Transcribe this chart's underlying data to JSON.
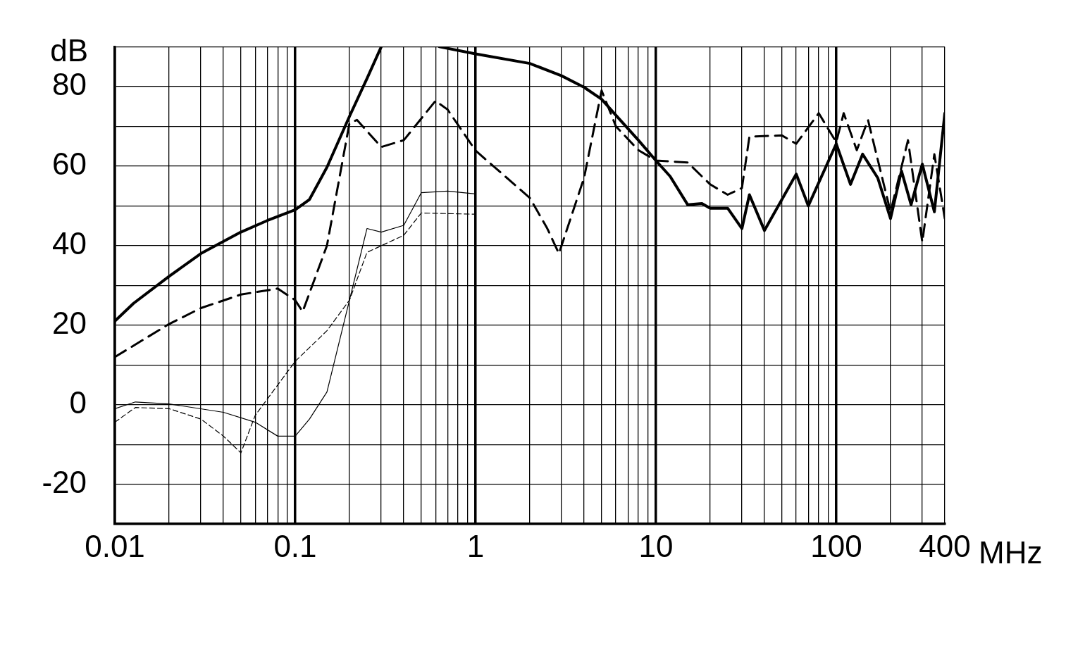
{
  "chart_data": {
    "type": "line",
    "xlabel": "MHz",
    "ylabel": "dB",
    "log": "x",
    "grid": true,
    "legend": false,
    "marker": "none",
    "xlim": [
      0.01,
      400
    ],
    "ylim": [
      -30,
      90
    ],
    "xticks": [
      0.01,
      {
        "value": 0.02,
        "label": null
      },
      {
        "value": 0.03,
        "label": null
      },
      {
        "value": 0.04,
        "label": null
      },
      {
        "value": 0.05,
        "label": null
      },
      {
        "value": 0.06,
        "label": null
      },
      {
        "value": 0.07,
        "label": null
      },
      {
        "value": 0.08,
        "label": null
      },
      {
        "value": 0.09,
        "label": null
      },
      0.1,
      {
        "value": 0.2,
        "label": null
      },
      {
        "value": 0.3,
        "label": null
      },
      {
        "value": 0.4,
        "label": null
      },
      {
        "value": 0.5,
        "label": null
      },
      {
        "value": 0.6,
        "label": null
      },
      {
        "value": 0.7,
        "label": null
      },
      {
        "value": 0.8,
        "label": null
      },
      {
        "value": 0.9,
        "label": null
      },
      1,
      {
        "value": 2,
        "label": null
      },
      {
        "value": 3,
        "label": null
      },
      {
        "value": 4,
        "label": null
      },
      {
        "value": 5,
        "label": null
      },
      {
        "value": 6,
        "label": null
      },
      {
        "value": 7,
        "label": null
      },
      {
        "value": 8,
        "label": null
      },
      {
        "value": 9,
        "label": null
      },
      10,
      {
        "value": 20,
        "label": null
      },
      {
        "value": 30,
        "label": null
      },
      {
        "value": 40,
        "label": null
      },
      {
        "value": 50,
        "label": null
      },
      {
        "value": 60,
        "label": null
      },
      {
        "value": 70,
        "label": null
      },
      {
        "value": 80,
        "label": null
      },
      {
        "value": 90,
        "label": null
      },
      100,
      {
        "value": 200,
        "label": null
      },
      {
        "value": 300,
        "label": null
      },
      400
    ],
    "yticks": [
      {
        "value": -30,
        "label": null
      },
      -20,
      {
        "value": -10,
        "label": null
      },
      0,
      {
        "value": 10,
        "label": null
      },
      20,
      {
        "value": 30,
        "label": null
      },
      40,
      {
        "value": 50,
        "label": null
      },
      60,
      {
        "value": 70,
        "label": null
      },
      80,
      {
        "value": 90,
        "label": null
      }
    ],
    "series": [
      {
        "color": "#000000",
        "line_style": "solid",
        "x": [
          0.01,
          0.0127,
          0.02,
          0.03,
          0.05,
          0.07,
          0.1,
          0.12,
          0.15,
          0.2,
          0.25,
          0.3,
          0.45,
          0.63,
          1,
          2,
          3,
          4,
          5,
          6,
          8,
          10,
          12,
          15,
          18,
          20,
          25,
          30,
          33,
          40,
          60,
          70,
          100,
          120,
          140,
          170,
          200,
          230,
          260,
          300,
          350,
          400
        ],
        "values": [
          21,
          25.5,
          32.3,
          38,
          43.4,
          46.3,
          49,
          51.6,
          59.7,
          72.5,
          82,
          90,
          null,
          90,
          88.2,
          85.8,
          82.7,
          79.8,
          76.8,
          72.8,
          66.5,
          61.4,
          57.4,
          50.3,
          50.6,
          49.4,
          49.4,
          44.3,
          52.8,
          43.8,
          58,
          50,
          65.6,
          55.4,
          63,
          57,
          46.8,
          58.8,
          50.3,
          60.5,
          48.5,
          73.3
        ]
      },
      {
        "color": "#000000",
        "line_style": "dashed",
        "x": [
          0.01,
          0.02,
          0.03,
          0.05,
          0.08,
          0.1,
          0.11,
          0.15,
          0.2,
          0.22,
          0.3,
          0.4,
          0.6,
          0.7,
          1,
          2,
          2.5,
          2.9,
          4,
          5,
          6,
          8,
          10,
          15,
          20,
          25,
          30,
          33,
          50,
          60,
          80,
          100,
          110,
          130,
          150,
          200,
          250,
          300,
          350,
          400
        ],
        "values": [
          12,
          20.3,
          24.3,
          27.7,
          29.2,
          26.3,
          23.4,
          40,
          70.8,
          71.6,
          64.8,
          66.5,
          76.4,
          74.2,
          63.9,
          52,
          44.3,
          38,
          57.1,
          79,
          70,
          64,
          61.4,
          60.9,
          55.4,
          52.8,
          54.5,
          67.4,
          67.7,
          65.6,
          73.3,
          66,
          73.3,
          64,
          71.6,
          48.5,
          66.5,
          40.9,
          63,
          46.8
        ]
      },
      {
        "color": "#000000",
        "line_style": "solid",
        "x": [
          0.01,
          0.013,
          0.02,
          0.04,
          0.06,
          0.08,
          0.1,
          0.12,
          0.15,
          0.2,
          0.25,
          0.3,
          0.4,
          0.5,
          0.7,
          1
        ],
        "values": [
          -1,
          0.7,
          0.2,
          -1.9,
          -4.4,
          -7.9,
          -7.9,
          -3.6,
          3.2,
          26.3,
          44.3,
          43.4,
          45.1,
          53.3,
          53.7,
          53
        ]
      },
      {
        "color": "#000000",
        "line_style": "dashed",
        "x": [
          0.01,
          0.013,
          0.02,
          0.03,
          0.04,
          0.05,
          0.06,
          0.1,
          0.15,
          0.2,
          0.25,
          0.4,
          0.5,
          1
        ],
        "values": [
          -4.4,
          -0.7,
          -1,
          -3.6,
          -7.9,
          -12.1,
          -2.7,
          10.9,
          18.6,
          26.3,
          38.3,
          42.6,
          48.2,
          47.9
        ]
      }
    ]
  }
}
